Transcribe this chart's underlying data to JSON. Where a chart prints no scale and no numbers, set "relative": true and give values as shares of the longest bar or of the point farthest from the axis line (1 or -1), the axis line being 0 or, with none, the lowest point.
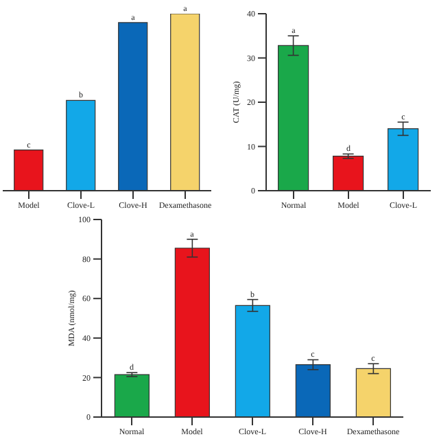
{
  "chart_data": [
    {
      "type": "bar",
      "categories": [
        "Model",
        "Clove-L",
        "Clove-H",
        "Dexamethasone"
      ],
      "values": [
        0.23,
        0.51,
        0.95,
        1
      ],
      "colors": [
        "#e8141c",
        "#12a8e8",
        "#0a68b8",
        "#f5d36b"
      ],
      "relative": true,
      "annotations": [
        {
          "text": "c",
          "x": "Model",
          "y": 0.23
        },
        {
          "text": "b",
          "x": "Clove-L",
          "y": 0.51
        },
        {
          "text": "a",
          "x": "Clove-H",
          "y": 0.95
        },
        {
          "text": "a",
          "x": "Dexamethasone",
          "y": 1
        }
      ]
    },
    {
      "type": "bar",
      "ylabel": "CAT (U/mg)",
      "categories": [
        "Normal",
        "Model",
        "Clove-L"
      ],
      "values": [
        32.8,
        7.8,
        14
      ],
      "errors": [
        2.2,
        0.5,
        1.5
      ],
      "colors": [
        "#1aa84a",
        "#e8141c",
        "#12a8e8"
      ],
      "ylim": [
        0,
        40
      ],
      "yticks": [
        0,
        10,
        20,
        30,
        40
      ],
      "annotations": [
        {
          "text": "a",
          "x": "Normal",
          "y": 35
        },
        {
          "text": "d",
          "x": "Model",
          "y": 8.3
        },
        {
          "text": "c",
          "x": "Clove-L",
          "y": 15.5
        }
      ]
    },
    {
      "type": "bar",
      "ylabel": "MDA (nmol/mg)",
      "categories": [
        "Normal",
        "Model",
        "Clove-L",
        "Clove-H",
        "Dexamethasone"
      ],
      "values": [
        21.5,
        85.5,
        56.5,
        26.5,
        24.5
      ],
      "errors": [
        1,
        4.5,
        3,
        2.5,
        2.5
      ],
      "colors": [
        "#1aa84a",
        "#e8141c",
        "#12a8e8",
        "#0a68b8",
        "#f5d36b"
      ],
      "ylim": [
        0,
        100
      ],
      "yticks": [
        0,
        20,
        40,
        60,
        80,
        100
      ],
      "annotations": [
        {
          "text": "d",
          "x": "Normal",
          "y": 22.5
        },
        {
          "text": "a",
          "x": "Model",
          "y": 90
        },
        {
          "text": "b",
          "x": "Clove-L",
          "y": 59.5
        },
        {
          "text": "c",
          "x": "Clove-H",
          "y": 29
        },
        {
          "text": "c",
          "x": "Dexamethasone",
          "y": 27
        }
      ]
    }
  ]
}
